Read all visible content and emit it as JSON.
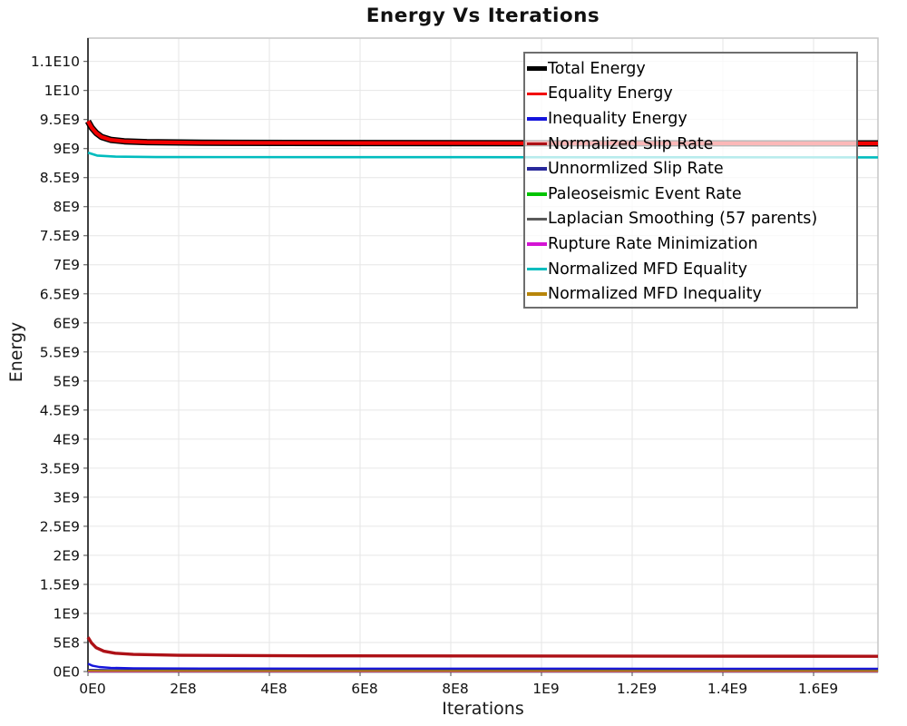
{
  "chart_data": {
    "type": "line",
    "title": "Energy Vs Iterations",
    "xlabel": "Iterations",
    "ylabel": "Energy",
    "xlim": [
      0,
      1742000000
    ],
    "ylim": [
      0,
      10900000000
    ],
    "grid": true,
    "legend_position": "top-right",
    "x_ticks": [
      {
        "v": 0,
        "label": "0E0"
      },
      {
        "v": 200000000.0,
        "label": "2E8"
      },
      {
        "v": 400000000.0,
        "label": "4E8"
      },
      {
        "v": 600000000.0,
        "label": "6E8"
      },
      {
        "v": 800000000.0,
        "label": "8E8"
      },
      {
        "v": 1000000000.0,
        "label": "1E9"
      },
      {
        "v": 1200000000.0,
        "label": "1.2E9"
      },
      {
        "v": 1400000000.0,
        "label": "1.4E9"
      },
      {
        "v": 1600000000.0,
        "label": "1.6E9"
      }
    ],
    "y_ticks": [
      {
        "v": 0,
        "label": "0E0"
      },
      {
        "v": 500000000.0,
        "label": "5E8"
      },
      {
        "v": 1000000000.0,
        "label": "1E9"
      },
      {
        "v": 1500000000.0,
        "label": "1.5E9"
      },
      {
        "v": 2000000000.0,
        "label": "2E9"
      },
      {
        "v": 2500000000.0,
        "label": "2.5E9"
      },
      {
        "v": 3000000000.0,
        "label": "3E9"
      },
      {
        "v": 3500000000.0,
        "label": "3.5E9"
      },
      {
        "v": 4000000000.0,
        "label": "4E9"
      },
      {
        "v": 4500000000.0,
        "label": "4.5E9"
      },
      {
        "v": 5000000000.0,
        "label": "5E9"
      },
      {
        "v": 5500000000.0,
        "label": "5.5E9"
      },
      {
        "v": 6000000000.0,
        "label": "6E9"
      },
      {
        "v": 6500000000.0,
        "label": "6.5E9"
      },
      {
        "v": 7000000000.0,
        "label": "7E9"
      },
      {
        "v": 7500000000.0,
        "label": "7.5E9"
      },
      {
        "v": 8000000000.0,
        "label": "8E9"
      },
      {
        "v": 8500000000.0,
        "label": "8.5E9"
      },
      {
        "v": 9000000000.0,
        "label": "9E9"
      },
      {
        "v": 9500000000.0,
        "label": "9.5E9"
      },
      {
        "v": 10000000000.0,
        "label": "1E10"
      },
      {
        "v": 10500000000.0,
        "label": "1.1E10"
      }
    ],
    "series": [
      {
        "label": "Total Energy",
        "color": "#000000",
        "width": 7,
        "points": [
          [
            0,
            9470000000.0
          ],
          [
            8000000.0,
            9360000000.0
          ],
          [
            18000000.0,
            9270000000.0
          ],
          [
            30000000.0,
            9200000000.0
          ],
          [
            50000000.0,
            9150000000.0
          ],
          [
            80000000.0,
            9125000000.0
          ],
          [
            130000000.0,
            9110000000.0
          ],
          [
            250000000.0,
            9100000000.0
          ],
          [
            600000000.0,
            9095000000.0
          ],
          [
            1200000000.0,
            9090000000.0
          ],
          [
            1742000000.0,
            9088000000.0
          ]
        ]
      },
      {
        "label": "Equality Energy",
        "color": "#F20000",
        "width": 4.2,
        "points": [
          [
            0,
            9470000000.0
          ],
          [
            8000000.0,
            9360000000.0
          ],
          [
            18000000.0,
            9270000000.0
          ],
          [
            30000000.0,
            9200000000.0
          ],
          [
            50000000.0,
            9150000000.0
          ],
          [
            80000000.0,
            9125000000.0
          ],
          [
            130000000.0,
            9110000000.0
          ],
          [
            250000000.0,
            9100000000.0
          ],
          [
            600000000.0,
            9095000000.0
          ],
          [
            1200000000.0,
            9090000000.0
          ],
          [
            1742000000.0,
            9088000000.0
          ]
        ]
      },
      {
        "label": "Inequality Energy",
        "color": "#1414DC",
        "width": 2.4,
        "points": [
          [
            0,
            135000000.0
          ],
          [
            10000000.0,
            100000000.0
          ],
          [
            25000000.0,
            78000000.0
          ],
          [
            50000000.0,
            64000000.0
          ],
          [
            100000000.0,
            56000000.0
          ],
          [
            250000000.0,
            51000000.0
          ],
          [
            1742000000.0,
            47000000.0
          ]
        ]
      },
      {
        "label": "Normalized Slip Rate",
        "color": "#AD1016",
        "width": 3.4,
        "points": [
          [
            0,
            590000000.0
          ],
          [
            8000000.0,
            490000000.0
          ],
          [
            18000000.0,
            410000000.0
          ],
          [
            35000000.0,
            350000000.0
          ],
          [
            60000000.0,
            315000000.0
          ],
          [
            100000000.0,
            295000000.0
          ],
          [
            200000000.0,
            280000000.0
          ],
          [
            500000000.0,
            270000000.0
          ],
          [
            1742000000.0,
            262000000.0
          ]
        ]
      },
      {
        "label": "Unnormlized Slip Rate",
        "color": "#28289B",
        "width": 2,
        "points": [
          [
            0,
            32000000.0
          ],
          [
            50000000.0,
            26000000.0
          ],
          [
            1742000000.0,
            23000000.0
          ]
        ]
      },
      {
        "label": "Paleoseismic Event Rate",
        "color": "#00C400",
        "width": 2,
        "points": [
          [
            0,
            6000000.0
          ],
          [
            1742000000.0,
            6000000.0
          ]
        ]
      },
      {
        "label": "Laplacian Smoothing (57 parents)",
        "color": "#5A5A5A",
        "width": 2,
        "points": [
          [
            0,
            4000000.0
          ],
          [
            1742000000.0,
            4000000.0
          ]
        ]
      },
      {
        "label": "Rupture Rate Minimization",
        "color": "#D414D4",
        "width": 2,
        "points": [
          [
            0,
            2000000.0
          ],
          [
            1742000000.0,
            2000000.0
          ]
        ]
      },
      {
        "label": "Normalized MFD Equality",
        "color": "#00BCBE",
        "width": 2.6,
        "points": [
          [
            0,
            8930000000.0
          ],
          [
            20000000.0,
            8880000000.0
          ],
          [
            60000000.0,
            8860000000.0
          ],
          [
            150000000.0,
            8853000000.0
          ],
          [
            1742000000.0,
            8848000000.0
          ]
        ]
      },
      {
        "label": "Normalized MFD Inequality",
        "color": "#B8860B",
        "width": 2,
        "points": [
          [
            0,
            14000000.0
          ],
          [
            30000000.0,
            11500000.0
          ],
          [
            1742000000.0,
            10000000.0
          ]
        ]
      }
    ],
    "style": {
      "grid_color": "#E6E6E6",
      "border_color": "#C6C6C6",
      "axis_color": "#2E2E2E",
      "tick_color": "#6A6A6A"
    }
  }
}
